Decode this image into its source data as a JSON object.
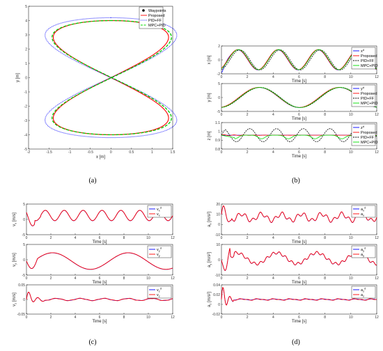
{
  "chart_data": [
    {
      "id": "a",
      "type": "line",
      "panel_label": "(a)",
      "xlabel": "x [m]",
      "ylabel": "y [m]",
      "xlim": [
        -2,
        1.5
      ],
      "ylim": [
        -5,
        5
      ],
      "xticks": [
        "-2",
        "-1.5",
        "-1",
        "-0.5",
        "0",
        "0.5",
        "1",
        "1.5"
      ],
      "yticks": [
        "-5",
        "-4",
        "-3",
        "-2",
        "-1",
        "0",
        "1",
        "2",
        "3",
        "4",
        "5"
      ],
      "legend": [
        "Waypoints",
        "Proposed",
        "PID+FF",
        "MPC+PID"
      ],
      "series": [
        {
          "name": "Proposed",
          "color": "#ff0000",
          "style": "solid",
          "ax": 1.4,
          "ay": 4.0,
          "xoff": 0
        },
        {
          "name": "PID+FF",
          "color": "#0000ff",
          "style": "dotted",
          "ax": 1.6,
          "ay": 4.2,
          "xoff": 0
        },
        {
          "name": "MPC+PID",
          "color": "#00cc00",
          "style": "dashed",
          "ax": 1.45,
          "ay": 4.0,
          "xoff": 0.02
        }
      ]
    },
    {
      "id": "b",
      "type": "line",
      "panel_label": "(b)",
      "subplots": [
        {
          "ylabel": "x [m]",
          "xlabel": "Time [s]",
          "ylim": [
            -2,
            2
          ],
          "yticks": [
            "-2",
            "0",
            "2"
          ],
          "legend": [
            "x^d",
            "Proposed",
            "PID+FF",
            "MPC+PID"
          ]
        },
        {
          "ylabel": "y [m]",
          "xlabel": "Time [s]",
          "ylim": [
            -5,
            5
          ],
          "yticks": [
            "-5",
            "0",
            "5"
          ],
          "legend": [
            "y^d",
            "Proposed",
            "PID+FF",
            "MPC+PID"
          ]
        },
        {
          "ylabel": "z [m]",
          "xlabel": "Time [s]",
          "ylim": [
            0.8,
            1.1
          ],
          "yticks": [
            "0.8",
            "0.9",
            "1",
            "1.1"
          ],
          "legend": [
            "z^d",
            "Proposed",
            "PID+FF",
            "MPC+PID"
          ]
        }
      ],
      "xlim": [
        0,
        12
      ],
      "xticks": [
        "0",
        "2",
        "4",
        "6",
        "8",
        "10",
        "12"
      ]
    },
    {
      "id": "c",
      "type": "line",
      "panel_label": "(c)",
      "subplots": [
        {
          "ylabel": "v_x [m/s]",
          "xlabel": "Time [s]",
          "yticks": [
            "-5",
            "0",
            "5"
          ],
          "legend": [
            "v_x^d",
            "v_x"
          ]
        },
        {
          "ylabel": "v_y [m/s]",
          "xlabel": "Time [s]",
          "yticks": [
            "-5",
            "0",
            "5"
          ],
          "legend": [
            "v_y^d",
            "v_y"
          ]
        },
        {
          "ylabel": "v_z [m/s]",
          "xlabel": "Time [s]",
          "yticks": [
            "-0.05",
            "0",
            "0.05"
          ],
          "legend": [
            "v_z^d",
            "v_z"
          ]
        }
      ],
      "xlim": [
        0,
        12
      ],
      "xticks": [
        "0",
        "2",
        "4",
        "6",
        "8",
        "10",
        "12"
      ]
    },
    {
      "id": "d",
      "type": "line",
      "panel_label": "(d)",
      "subplots": [
        {
          "ylabel": "a_x [m/s^2]",
          "xlabel": "Time [s]",
          "yticks": [
            "-10",
            "0",
            "10",
            "20"
          ],
          "legend": [
            "a_x^d",
            "a_x"
          ]
        },
        {
          "ylabel": "a_y [m/s^2]",
          "xlabel": "Time [s]",
          "yticks": [
            "-10",
            "0",
            "10"
          ],
          "legend": [
            "a_y^d",
            "a_y"
          ]
        },
        {
          "ylabel": "a_z [m/s^2]",
          "xlabel": "Time [s]",
          "yticks": [
            "-0.02",
            "0",
            "0.02",
            "0.04"
          ],
          "legend": [
            "a_z^d",
            "a_z"
          ]
        }
      ],
      "xlim": [
        0,
        12
      ],
      "xticks": [
        "0",
        "2",
        "4",
        "6",
        "8",
        "10",
        "12"
      ]
    }
  ],
  "colors": {
    "desired": "#0000ff",
    "proposed": "#ff0000",
    "pidff": "#000000",
    "mpcpid": "#00dd00"
  }
}
